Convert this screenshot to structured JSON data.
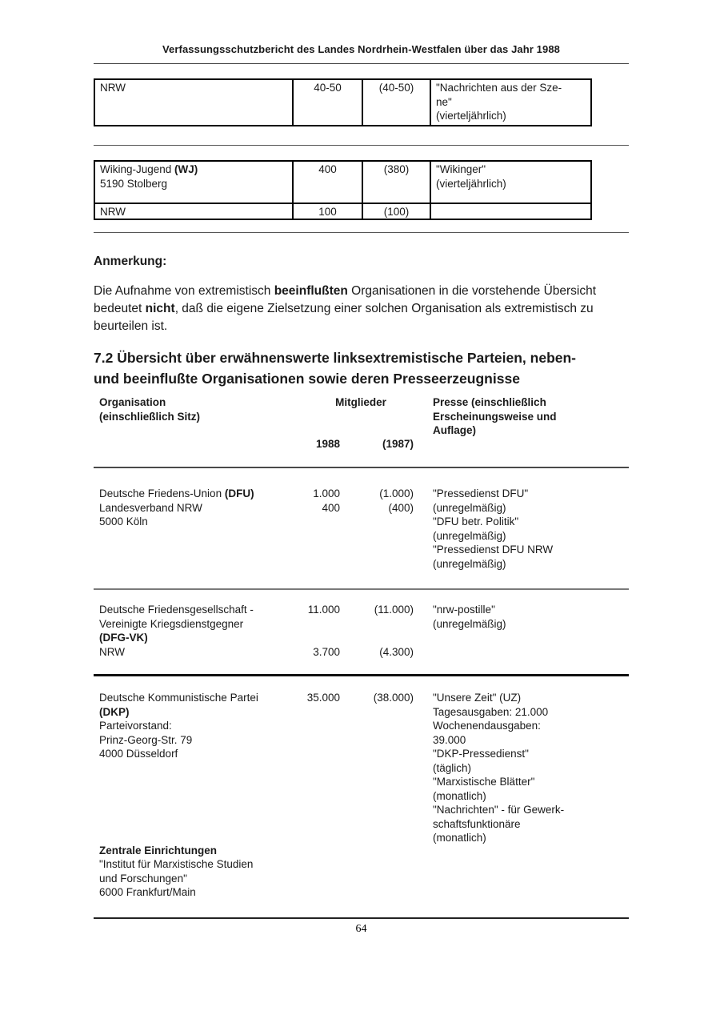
{
  "header": {
    "title": "Verfassungsschutzbericht des Landes Nordrhein-Westfalen über das Jahr 1988"
  },
  "footer": {
    "page_number": "64"
  },
  "top_tables": [
    {
      "name": "nrw-szene-table",
      "rows": [
        {
          "org": [
            [
              {
                "t": "NRW"
              }
            ]
          ],
          "m1988": "40-50",
          "m1987": "(40-50)",
          "presse": [
            "\"Nachrichten aus der Sze-",
            "ne\"",
            "(vierteljährlich)"
          ]
        }
      ]
    },
    {
      "name": "wiking-jugend-table",
      "rows": [
        {
          "org": [
            [
              {
                "t": "Wiking-Jugend ",
                "b": 0
              },
              {
                "t": "(WJ)",
                "b": 1
              }
            ],
            [
              {
                "t": "5190 Stolberg"
              }
            ]
          ],
          "m1988": "400",
          "m1987": "(380)",
          "presse": [
            "\"Wikinger\"",
            "(vierteljährlich)"
          ]
        },
        {
          "org": [
            [
              {
                "t": "NRW"
              }
            ]
          ],
          "m1988": "100",
          "m1987": "(100)",
          "presse": []
        }
      ]
    }
  ],
  "anmerkung": {
    "label": "Anmerkung:",
    "segments": [
      {
        "t": "Die Aufnahme von extremistisch ",
        "b": 0
      },
      {
        "t": "beeinflußten",
        "b": 1
      },
      {
        "t": " Organisationen in die vorstehende Übersicht bedeutet ",
        "b": 0
      },
      {
        "t": "nicht",
        "b": 1
      },
      {
        "t": ", daß die eigene Zielsetzung einer solchen Organisation als extremistisch zu beurteilen ist.",
        "b": 0
      }
    ]
  },
  "section": {
    "heading": "7.2 Übersicht über erwähnenswerte linksextremistische Parteien, neben- und beeinflußte Organisationen sowie deren Presseerzeugnisse"
  },
  "listing": {
    "header": {
      "org_line1": "Organisation",
      "org_line2": "(einschließlich Sitz)",
      "mitglieder": "Mitglieder",
      "year_1988": "1988",
      "year_1987": "(1987)",
      "presse_lines": [
        "Presse (einschließlich",
        "Erscheinungsweise und",
        "Auflage)"
      ]
    },
    "rows": [
      {
        "rule_after": "thin",
        "org": [
          [
            {
              "t": "Deutsche Friedens-Union ",
              "b": 0
            },
            {
              "t": "(DFU)",
              "b": 1
            }
          ],
          [
            {
              "t": "Landesverband NRW"
            }
          ],
          [
            {
              "t": "5000 Köln"
            }
          ]
        ],
        "m1988": [
          "1.000",
          "400"
        ],
        "m1987": [
          "(1.000)",
          "(400)"
        ],
        "presse": [
          "\"Pressedienst DFU\"",
          "(unregelmäßig)",
          "\"DFU betr. Politik\"",
          "(unregelmäßig)",
          "\"Pressedienst DFU NRW",
          "(unregelmäßig)"
        ]
      },
      {
        "rule_after": "thick",
        "org": [
          [
            {
              "t": "Deutsche Friedensgesellschaft -"
            }
          ],
          [
            {
              "t": "Vereinigte Kriegsdienstgegner"
            }
          ],
          [
            {
              "t": "(DFG-VK)",
              "b": 1
            }
          ],
          [
            {
              "t": "NRW"
            }
          ]
        ],
        "m1988": [
          "11.000",
          "",
          "",
          "3.700"
        ],
        "m1987": [
          "(11.000)",
          "",
          "",
          "(4.300)"
        ],
        "presse": [
          "\"nrw-postille\"",
          "(unregelmäßig)"
        ]
      },
      {
        "rule_after": "none",
        "org": [
          [
            {
              "t": "Deutsche Kommunistische Partei"
            }
          ],
          [
            {
              "t": "(DKP)",
              "b": 1
            }
          ],
          [
            {
              "t": "Parteivorstand:"
            }
          ],
          [
            {
              "t": "Prinz-Georg-Str. 79"
            }
          ],
          [
            {
              "t": "4000 Düsseldorf"
            }
          ]
        ],
        "m1988": [
          "35.000"
        ],
        "m1987": [
          "(38.000)"
        ],
        "presse": [
          "\"Unsere Zeit\" (UZ)",
          "Tagesausgaben: 21.000",
          "Wochenendausgaben:",
          "39.000",
          "\"DKP-Pressedienst\"",
          "(täglich)",
          "\"Marxistische Blätter\"",
          "(monatlich)",
          "\"Nachrichten\" - für Gewerk-",
          "schaftsfunktionäre",
          "(monatlich)"
        ],
        "sub_block": {
          "lines": [
            [
              {
                "t": "Zentrale Einrichtungen",
                "b": 1
              }
            ],
            [
              {
                "t": "\"Institut für Marxistische Studien"
              }
            ],
            [
              {
                "t": "und Forschungen\""
              }
            ],
            [
              {
                "t": "6000 Frankfurt/Main"
              }
            ]
          ]
        }
      }
    ]
  },
  "colors": {
    "background": "#ffffff",
    "text": "#1a1a1a",
    "rule_light": "#7a7a7a",
    "rule_dark": "#111111",
    "table_border": "#000000"
  }
}
